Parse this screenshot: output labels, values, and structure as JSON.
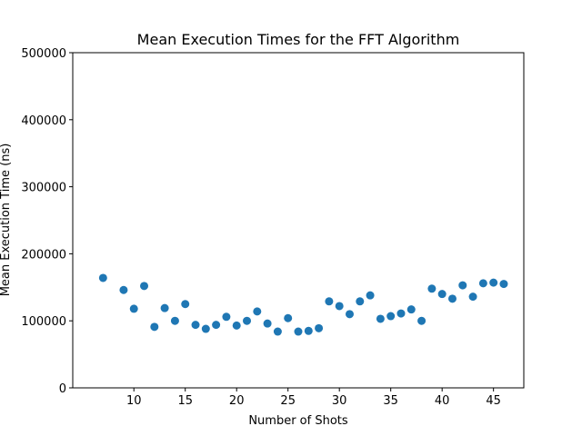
{
  "chart_data": {
    "type": "scatter",
    "title": "Mean Execution Times for the FFT Algorithm",
    "xlabel": "Number of Shots",
    "ylabel": "Mean Execution Time (ns)",
    "xlim": [
      4.05,
      47.95
    ],
    "ylim": [
      0,
      500000
    ],
    "xticks": [
      10,
      15,
      20,
      25,
      30,
      35,
      40,
      45
    ],
    "yticks": [
      0,
      100000,
      200000,
      300000,
      400000,
      500000
    ],
    "grid": false,
    "marker_color": "#1f77b4",
    "points": [
      {
        "x": 7,
        "y": 164000
      },
      {
        "x": 9,
        "y": 146000
      },
      {
        "x": 10,
        "y": 118000
      },
      {
        "x": 11,
        "y": 152000
      },
      {
        "x": 12,
        "y": 91000
      },
      {
        "x": 13,
        "y": 119000
      },
      {
        "x": 14,
        "y": 100000
      },
      {
        "x": 15,
        "y": 125000
      },
      {
        "x": 16,
        "y": 94000
      },
      {
        "x": 17,
        "y": 88000
      },
      {
        "x": 18,
        "y": 94000
      },
      {
        "x": 19,
        "y": 106000
      },
      {
        "x": 20,
        "y": 93000
      },
      {
        "x": 21,
        "y": 100000
      },
      {
        "x": 22,
        "y": 114000
      },
      {
        "x": 23,
        "y": 96000
      },
      {
        "x": 24,
        "y": 84000
      },
      {
        "x": 25,
        "y": 104000
      },
      {
        "x": 26,
        "y": 84000
      },
      {
        "x": 27,
        "y": 85000
      },
      {
        "x": 28,
        "y": 89000
      },
      {
        "x": 29,
        "y": 129000
      },
      {
        "x": 30,
        "y": 122000
      },
      {
        "x": 31,
        "y": 110000
      },
      {
        "x": 32,
        "y": 129000
      },
      {
        "x": 33,
        "y": 138000
      },
      {
        "x": 34,
        "y": 103000
      },
      {
        "x": 35,
        "y": 107000
      },
      {
        "x": 36,
        "y": 111000
      },
      {
        "x": 37,
        "y": 117000
      },
      {
        "x": 38,
        "y": 100000
      },
      {
        "x": 39,
        "y": 148000
      },
      {
        "x": 40,
        "y": 140000
      },
      {
        "x": 41,
        "y": 133000
      },
      {
        "x": 42,
        "y": 153000
      },
      {
        "x": 43,
        "y": 136000
      },
      {
        "x": 44,
        "y": 156000
      },
      {
        "x": 45,
        "y": 157000
      },
      {
        "x": 46,
        "y": 155000
      }
    ]
  }
}
